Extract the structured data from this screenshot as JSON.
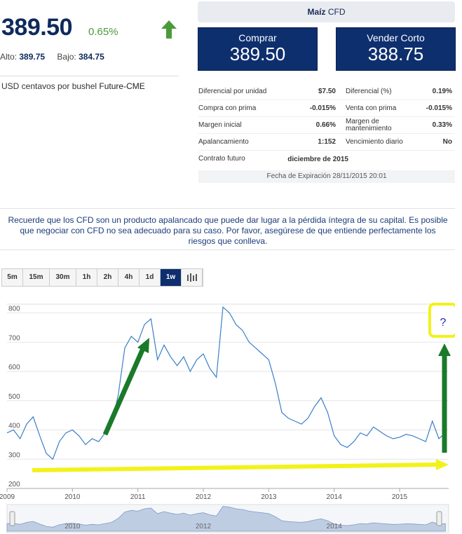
{
  "instrument": {
    "price": "389.50",
    "change": "0.65%",
    "high_label": "Alto:",
    "high": "389.75",
    "low_label": "Bajo:",
    "low": "384.75",
    "unit_text": "USD centavos por bushel",
    "exchange": "Future-CME",
    "trend_icon": "up-arrow-icon",
    "trend_color": "#4a9a3a"
  },
  "header": {
    "name": "Maíz",
    "type": "CFD"
  },
  "buttons": {
    "buy_label": "Comprar",
    "buy_price": "389.50",
    "sell_label": "Vender Corto",
    "sell_price": "388.75",
    "color": "#0e2f6e"
  },
  "details": [
    {
      "l1": "Diferencial por unidad",
      "v1": "$7.50",
      "l2": "Diferencial (%)",
      "v2": "0.19%"
    },
    {
      "l1": "Compra con prima",
      "v1": "-0.015%",
      "l2": "Venta con prima",
      "v2": "-0.015%"
    },
    {
      "l1": "Margen inicial",
      "v1": "0.66%",
      "l2": "Margen de mantenimiento",
      "v2": "0.33%"
    },
    {
      "l1": "Apalancamiento",
      "v1": "1:152",
      "l2": "Vencimiento diario",
      "v2": "No"
    },
    {
      "l1": "Contrato futuro",
      "v1": "diciembre de 2015",
      "l2": "",
      "v2": ""
    }
  ],
  "expiry": "Fecha de Expiración 28/11/2015 20:01",
  "warning": "Recuerde que los CFD son un producto apalancado que puede dar lugar a la pérdida íntegra de su capital. Es posible que negociar con CFD no sea adecuado para su caso. Por favor, asegúrese de que entiende perfectamente los riesgos que conlleva.",
  "timeframes": [
    "5m",
    "15m",
    "30m",
    "1h",
    "2h",
    "4h",
    "1d",
    "1w"
  ],
  "active_timeframe": "1w",
  "chart_type_icon": "candlestick-icon",
  "annotation": "?",
  "chart_data": {
    "type": "line",
    "x_ticks": [
      "2009",
      "2010",
      "2011",
      "2012",
      "2013",
      "2014",
      "2015"
    ],
    "y_ticks": [
      200,
      300,
      400,
      500,
      600,
      700,
      800
    ],
    "ylim": [
      200,
      830
    ],
    "line_color": "#3a7fc8",
    "navigator_ticks": [
      "2010",
      "2012",
      "2014"
    ],
    "series": [
      {
        "x": [
          2009.0,
          2009.1,
          2009.2,
          2009.3,
          2009.4,
          2009.5,
          2009.6,
          2009.7,
          2009.8,
          2009.9,
          2010.0,
          2010.1,
          2010.2,
          2010.3,
          2010.4,
          2010.5,
          2010.6,
          2010.7,
          2010.8,
          2010.9,
          2011.0,
          2011.1,
          2011.2,
          2011.3,
          2011.4,
          2011.5,
          2011.6,
          2011.7,
          2011.8,
          2011.9,
          2012.0,
          2012.1,
          2012.2,
          2012.3,
          2012.4,
          2012.5,
          2012.6,
          2012.7,
          2012.8,
          2012.9,
          2013.0,
          2013.1,
          2013.2,
          2013.3,
          2013.4,
          2013.5,
          2013.6,
          2013.7,
          2013.8,
          2013.9,
          2014.0,
          2014.1,
          2014.2,
          2014.3,
          2014.4,
          2014.5,
          2014.6,
          2014.7,
          2014.8,
          2014.9,
          2015.0,
          2015.1,
          2015.2,
          2015.3,
          2015.4,
          2015.5,
          2015.6,
          2015.7
        ],
        "y": [
          390,
          400,
          370,
          420,
          445,
          380,
          320,
          300,
          360,
          390,
          400,
          380,
          350,
          370,
          360,
          390,
          420,
          520,
          680,
          720,
          700,
          760,
          780,
          640,
          690,
          650,
          620,
          650,
          600,
          640,
          660,
          610,
          580,
          820,
          800,
          760,
          740,
          700,
          680,
          660,
          640,
          560,
          460,
          440,
          430,
          420,
          440,
          480,
          510,
          460,
          380,
          350,
          340,
          360,
          390,
          380,
          410,
          395,
          380,
          370,
          375,
          385,
          380,
          370,
          360,
          430,
          370,
          390
        ]
      }
    ]
  }
}
